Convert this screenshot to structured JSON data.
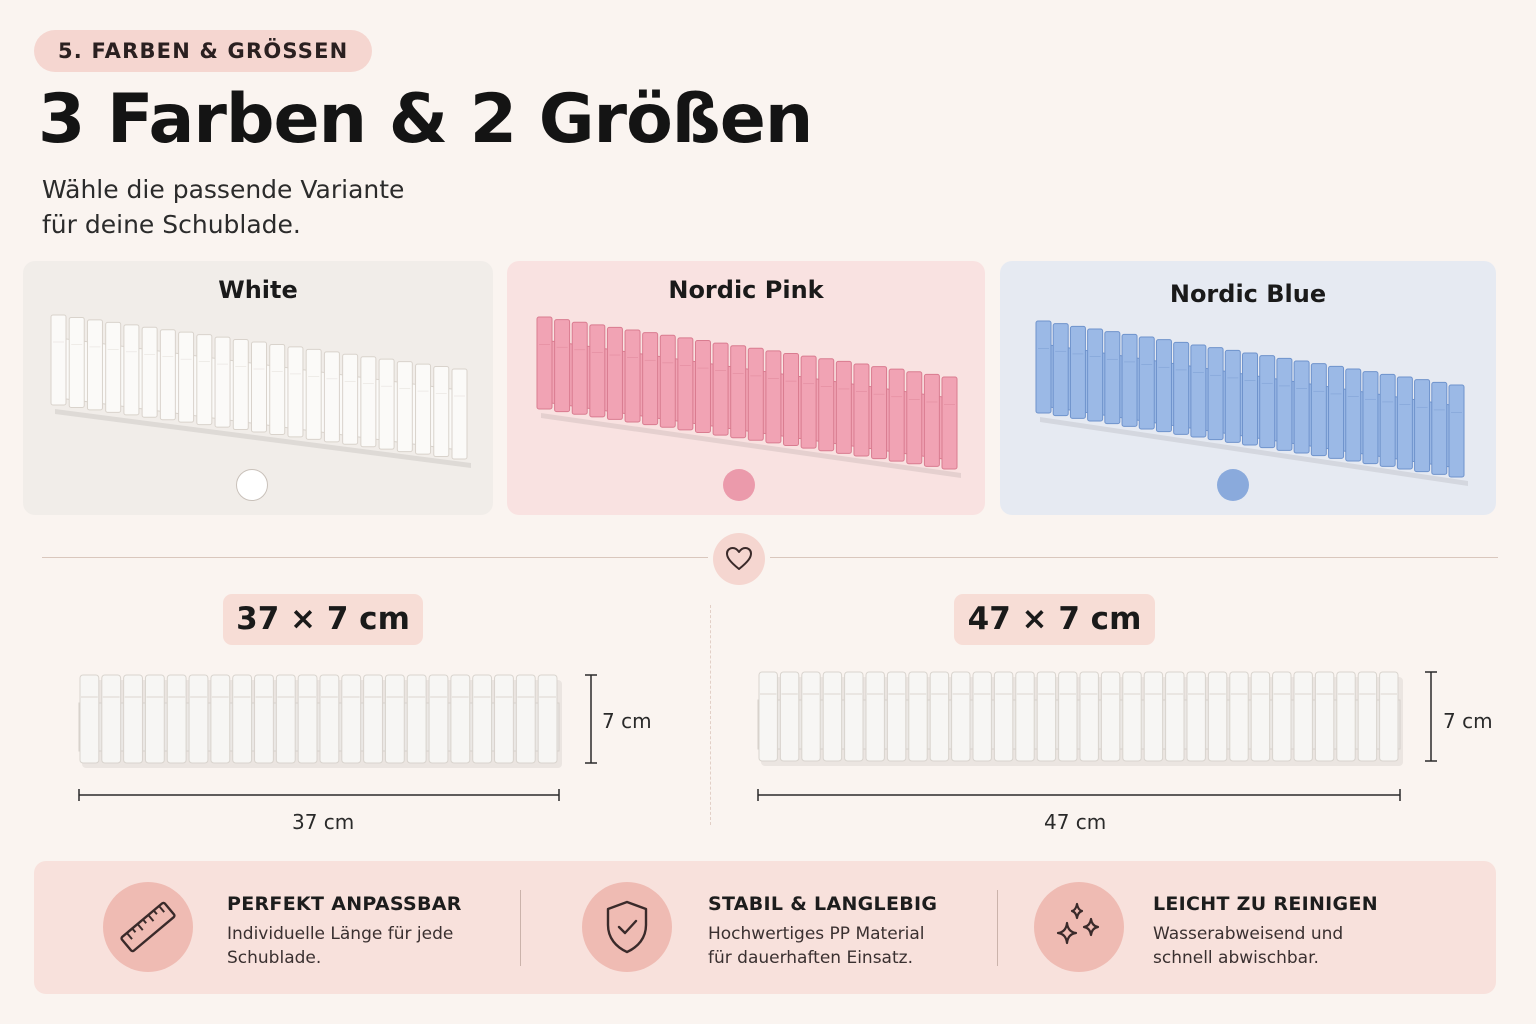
{
  "header": {
    "badge": "5. FARBEN & GRÖSSEN",
    "title": "3 Farben & 2 Größen",
    "subtitle_lines": [
      "Wähle die passende Variante",
      "für deine Schublade."
    ]
  },
  "colors": [
    {
      "name": "White",
      "swatch": "#ffffff",
      "product_fill": "#fbfaf8",
      "product_stroke": "#d9d3cc",
      "card_bg": "#f1ede9"
    },
    {
      "name": "Nordic Pink",
      "swatch": "#eb9aab",
      "product_fill": "#f1a3b4",
      "product_stroke": "#d97c90",
      "card_bg": "#f9e2e1"
    },
    {
      "name": "Nordic Blue",
      "swatch": "#8aaadc",
      "product_fill": "#9bb9e6",
      "product_stroke": "#6f93cc",
      "card_bg": "#e6eaf2"
    }
  ],
  "sizes": [
    {
      "label": "37 × 7 cm",
      "width_label": "37 cm",
      "height_label": "7 cm"
    },
    {
      "label": "47 × 7 cm",
      "width_label": "47 cm",
      "height_label": "7 cm"
    }
  ],
  "divider_icon": "heart-icon",
  "features": [
    {
      "icon": "ruler-icon",
      "title": "PERFEKT ANPASSBAR",
      "lines": [
        "Individuelle Länge für jede",
        "Schublade."
      ]
    },
    {
      "icon": "shield-check-icon",
      "title": "STABIL & LANGLEBIG",
      "lines": [
        "Hochwertiges PP Material",
        "für dauerhaften Einsatz."
      ]
    },
    {
      "icon": "sparkles-icon",
      "title": "LEICHT ZU REINIGEN",
      "lines": [
        "Wasserabweisend und",
        "schnell abwischbar."
      ]
    }
  ],
  "theme": {
    "accent": "#f5d6d0",
    "icon_circle": "#efbbb3",
    "stroke": "#3a2a2a"
  }
}
